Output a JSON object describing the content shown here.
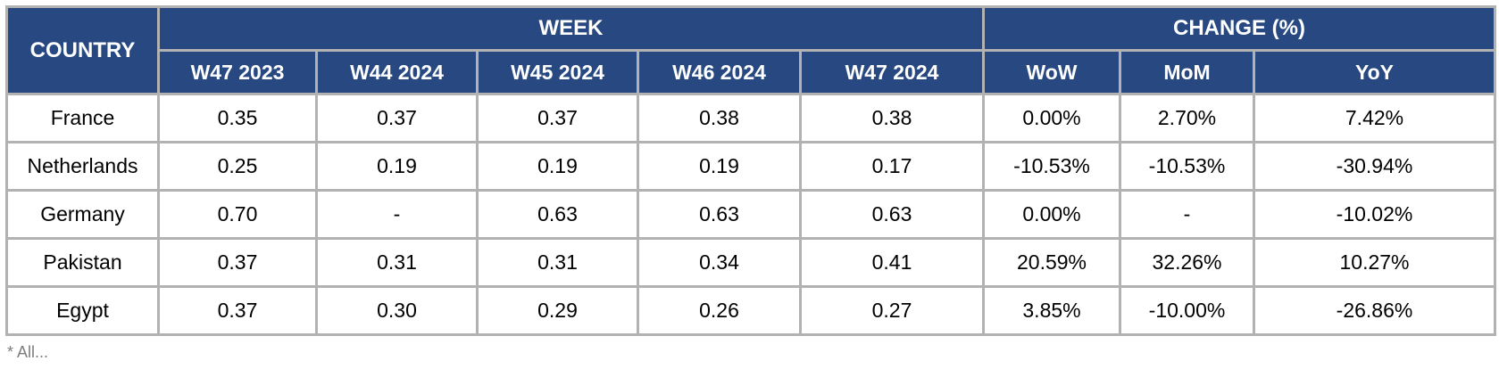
{
  "table": {
    "country_header": "COUNTRY",
    "week_header": "WEEK",
    "change_header": "CHANGE (%)",
    "week_columns": [
      "W47 2023",
      "W44 2024",
      "W45 2024",
      "W46 2024",
      "W47 2024"
    ],
    "change_columns": [
      "WoW",
      "MoM",
      "YoY"
    ],
    "rows": [
      {
        "country": "France",
        "weeks": [
          "0.35",
          "0.37",
          "0.37",
          "0.38",
          "0.38"
        ],
        "changes": [
          "0.00%",
          "2.70%",
          "7.42%"
        ]
      },
      {
        "country": "Netherlands",
        "weeks": [
          "0.25",
          "0.19",
          "0.19",
          "0.19",
          "0.17"
        ],
        "changes": [
          "-10.53%",
          "-10.53%",
          "-30.94%"
        ]
      },
      {
        "country": "Germany",
        "weeks": [
          "0.70",
          "-",
          "0.63",
          "0.63",
          "0.63"
        ],
        "changes": [
          "0.00%",
          "-",
          "-10.02%"
        ]
      },
      {
        "country": "Pakistan",
        "weeks": [
          "0.37",
          "0.31",
          "0.31",
          "0.34",
          "0.41"
        ],
        "changes": [
          "20.59%",
          "32.26%",
          "10.27%"
        ]
      },
      {
        "country": "Egypt",
        "weeks": [
          "0.37",
          "0.30",
          "0.29",
          "0.26",
          "0.27"
        ],
        "changes": [
          "3.85%",
          "-10.00%",
          "-26.86%"
        ]
      }
    ]
  },
  "footnote": "* All...",
  "colors": {
    "header_bg": "#274880",
    "header_text": "#ffffff",
    "grid": "#b2b2b2",
    "outer_border": "#a2a2a2",
    "cell_bg": "#ffffff",
    "cell_text": "#000000"
  },
  "chart_data": {
    "type": "table",
    "title": "",
    "column_groups": [
      {
        "label": "COUNTRY",
        "span": 1
      },
      {
        "label": "WEEK",
        "span": 5
      },
      {
        "label": "CHANGE (%)",
        "span": 3
      }
    ],
    "columns": [
      "COUNTRY",
      "W47 2023",
      "W44 2024",
      "W45 2024",
      "W46 2024",
      "W47 2024",
      "WoW",
      "MoM",
      "YoY"
    ],
    "rows": [
      [
        "France",
        "0.35",
        "0.37",
        "0.37",
        "0.38",
        "0.38",
        "0.00%",
        "2.70%",
        "7.42%"
      ],
      [
        "Netherlands",
        "0.25",
        "0.19",
        "0.19",
        "0.19",
        "0.17",
        "-10.53%",
        "-10.53%",
        "-30.94%"
      ],
      [
        "Germany",
        "0.70",
        "-",
        "0.63",
        "0.63",
        "0.63",
        "0.00%",
        "-",
        "-10.02%"
      ],
      [
        "Pakistan",
        "0.37",
        "0.31",
        "0.31",
        "0.34",
        "0.41",
        "20.59%",
        "32.26%",
        "10.27%"
      ],
      [
        "Egypt",
        "0.37",
        "0.30",
        "0.29",
        "0.26",
        "0.27",
        "3.85%",
        "-10.00%",
        "-26.86%"
      ]
    ]
  }
}
